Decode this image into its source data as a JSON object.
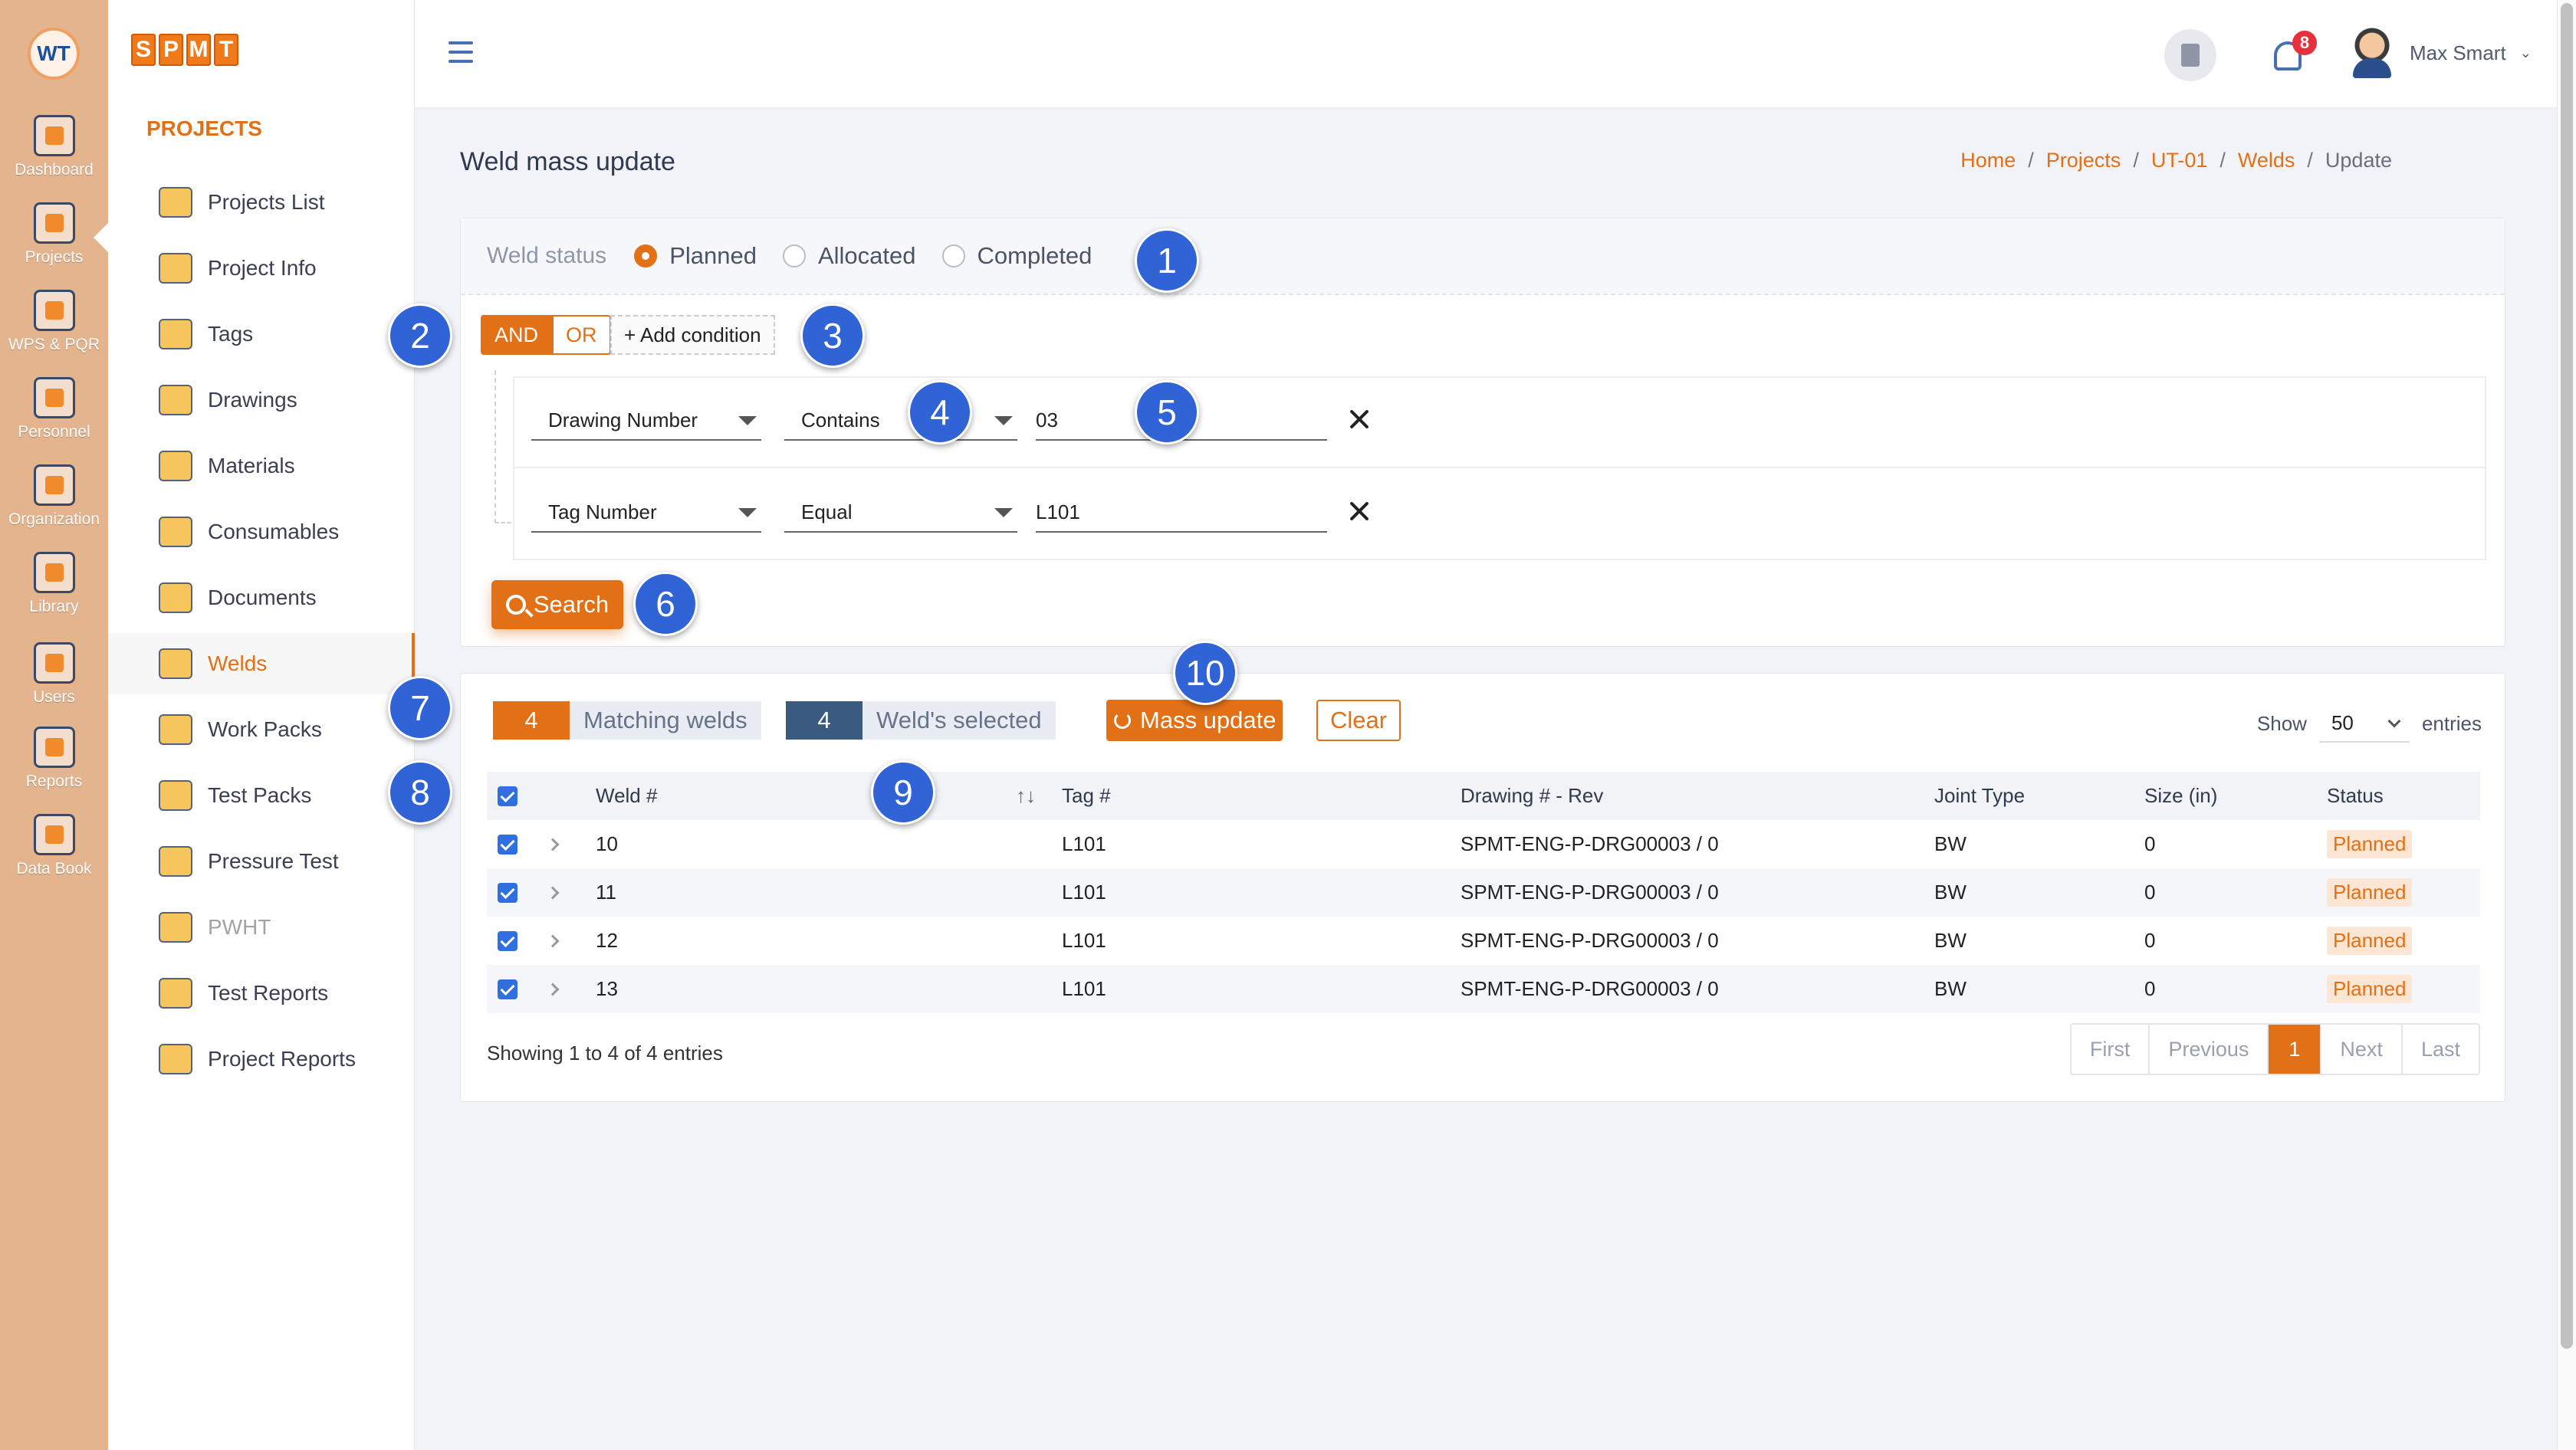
{
  "rail": {
    "items": [
      {
        "label": "Dashboard",
        "icon": "monitor-icon"
      },
      {
        "label": "Projects",
        "icon": "folder-icon"
      },
      {
        "label": "WPS & PQR",
        "icon": "document-gear-icon"
      },
      {
        "label": "Personnel",
        "icon": "welder-icon"
      },
      {
        "label": "Organization",
        "icon": "org-chart-icon"
      },
      {
        "label": "Library",
        "icon": "library-icon"
      },
      {
        "label": "Users",
        "icon": "users-icon"
      },
      {
        "label": "Reports",
        "icon": "report-icon"
      },
      {
        "label": "Data Book",
        "icon": "databook-icon"
      }
    ]
  },
  "brand": {
    "letters": [
      "S",
      "P",
      "M",
      "T"
    ]
  },
  "menu": {
    "title": "PROJECTS",
    "items": [
      {
        "label": "Projects List",
        "icon": "folder-list-icon"
      },
      {
        "label": "Project Info",
        "icon": "gears-icon"
      },
      {
        "label": "Tags",
        "icon": "tag-icon"
      },
      {
        "label": "Drawings",
        "icon": "drawing-icon"
      },
      {
        "label": "Materials",
        "icon": "materials-icon"
      },
      {
        "label": "Consumables",
        "icon": "consumables-icon"
      },
      {
        "label": "Documents",
        "icon": "documents-icon"
      },
      {
        "label": "Welds",
        "icon": "weld-icon",
        "active": true
      },
      {
        "label": "Work Packs",
        "icon": "workpack-icon"
      },
      {
        "label": "Test Packs",
        "icon": "radiation-icon"
      },
      {
        "label": "Pressure Test",
        "icon": "pressure-gauge-icon"
      },
      {
        "label": "PWHT",
        "icon": "pwht-icon",
        "disabled": true
      },
      {
        "label": "Test Reports",
        "icon": "test-report-icon"
      },
      {
        "label": "Project Reports",
        "icon": "project-report-icon"
      }
    ]
  },
  "header": {
    "notifications": "8",
    "user_name": "Max Smart",
    "user_caret": "⌄"
  },
  "page": {
    "title": "Weld mass update",
    "breadcrumb": [
      "Home",
      "Projects",
      "UT-01",
      "Welds"
    ],
    "breadcrumb_current": "Update",
    "breadcrumb_sep": "/"
  },
  "filter": {
    "status_label": "Weld status",
    "statuses": [
      {
        "label": "Planned",
        "checked": true
      },
      {
        "label": "Allocated",
        "checked": false
      },
      {
        "label": "Completed",
        "checked": false
      }
    ],
    "and_label": "AND",
    "or_label": "OR",
    "add_condition": "+ Add condition",
    "conditions": [
      {
        "field": "Drawing Number",
        "operator": "Contains",
        "value": "03"
      },
      {
        "field": "Tag Number",
        "operator": "Equal",
        "value": "L101"
      }
    ],
    "search_label": "Search"
  },
  "results": {
    "matching_count": "4",
    "matching_label": "Matching welds",
    "selected_count": "4",
    "selected_label": "Weld's selected",
    "mass_update_label": "Mass update",
    "clear_label": "Clear",
    "show_label": "Show",
    "entries_value": "50",
    "entries_label": "entries",
    "columns": {
      "weld": "Weld #",
      "sort": "↑↓",
      "tag": "Tag #",
      "drawing": "Drawing # - Rev",
      "joint": "Joint Type",
      "size": "Size (in)",
      "status": "Status"
    },
    "rows": [
      {
        "weld": "10",
        "tag": "L101",
        "drawing": "SPMT-ENG-P-DRG00003 / 0",
        "joint": "BW",
        "size": "0",
        "status": "Planned"
      },
      {
        "weld": "11",
        "tag": "L101",
        "drawing": "SPMT-ENG-P-DRG00003 / 0",
        "joint": "BW",
        "size": "0",
        "status": "Planned"
      },
      {
        "weld": "12",
        "tag": "L101",
        "drawing": "SPMT-ENG-P-DRG00003 / 0",
        "joint": "BW",
        "size": "0",
        "status": "Planned"
      },
      {
        "weld": "13",
        "tag": "L101",
        "drawing": "SPMT-ENG-P-DRG00003 / 0",
        "joint": "BW",
        "size": "0",
        "status": "Planned"
      }
    ],
    "showing": "Showing 1 to 4 of 4 entries",
    "pager": {
      "first": "First",
      "previous": "Previous",
      "current": "1",
      "next": "Next",
      "last": "Last"
    }
  },
  "steps": [
    "1",
    "2",
    "3",
    "4",
    "5",
    "6",
    "7",
    "8",
    "9",
    "10"
  ],
  "colors": {
    "accent": "#e27016",
    "rail": "#e4b48e",
    "step": "#2f63d6",
    "selected_pill": "#3b5a80",
    "checkbox": "#2f6fe0"
  }
}
